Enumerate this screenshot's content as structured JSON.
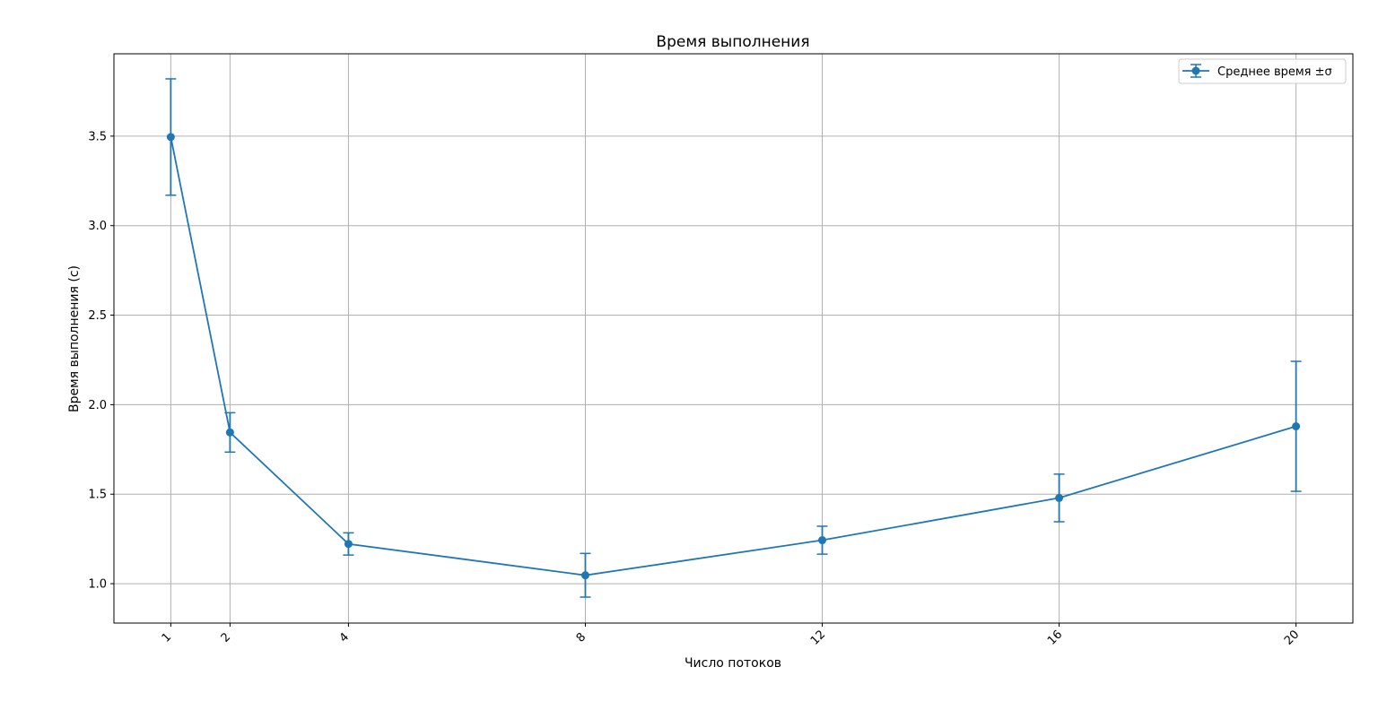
{
  "chart_data": {
    "type": "line",
    "title": "Время выполнения",
    "xlabel": "Число потоков",
    "ylabel": "Время выполнения (с)",
    "x": [
      1,
      2,
      4,
      8,
      12,
      16,
      20
    ],
    "x_tick_labels": [
      "1",
      "2",
      "4",
      "8",
      "12",
      "16",
      "20"
    ],
    "xlim": [
      0.04,
      20.96
    ],
    "ylim": [
      0.78,
      3.96
    ],
    "y_ticks": [
      1.0,
      1.5,
      2.0,
      2.5,
      3.0,
      3.5
    ],
    "y_tick_labels": [
      "1.0",
      "1.5",
      "2.0",
      "2.5",
      "3.0",
      "3.5"
    ],
    "grid": true,
    "legend_position": "top-right",
    "series": [
      {
        "name": "Среднее время ±σ",
        "color": "#1f77b4",
        "values": [
          3.495,
          1.845,
          1.222,
          1.047,
          1.243,
          1.479,
          1.879
        ],
        "error": [
          0.325,
          0.11,
          0.062,
          0.122,
          0.078,
          0.133,
          0.363
        ]
      }
    ]
  }
}
